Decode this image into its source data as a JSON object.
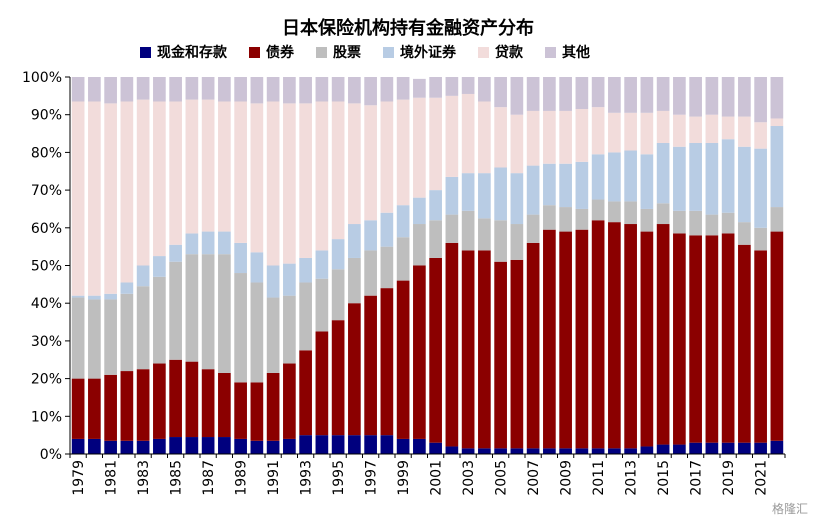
{
  "chart_data": {
    "type": "bar",
    "stacked": true,
    "title": "日本保险机构持有金融资产分布",
    "xlabel": "",
    "ylabel": "",
    "ylim": [
      0,
      100
    ],
    "y_ticks": [
      "0%",
      "10%",
      "20%",
      "30%",
      "40%",
      "50%",
      "60%",
      "70%",
      "80%",
      "90%",
      "100%"
    ],
    "legend_position": "top",
    "categories": [
      "1979",
      "1980",
      "1981",
      "1982",
      "1983",
      "1984",
      "1985",
      "1986",
      "1987",
      "1988",
      "1989",
      "1990",
      "1991",
      "1992",
      "1993",
      "1994",
      "1995",
      "1996",
      "1997",
      "1998",
      "1999",
      "2000",
      "2001",
      "2002",
      "2003",
      "2004",
      "2005",
      "2006",
      "2007",
      "2008",
      "2009",
      "2010",
      "2011",
      "2012",
      "2013",
      "2014",
      "2015",
      "2016",
      "2017",
      "2018",
      "2019",
      "2020",
      "2021",
      "2022"
    ],
    "x_tick_labels": [
      "1979",
      "1981",
      "1983",
      "1985",
      "1987",
      "1989",
      "1991",
      "1993",
      "1995",
      "1997",
      "1999",
      "2001",
      "2003",
      "2005",
      "2007",
      "2009",
      "2011",
      "2013",
      "2015",
      "2017",
      "2019",
      "2021"
    ],
    "series": [
      {
        "name": "现金和存款",
        "color": "#00007e",
        "values": [
          4,
          4,
          3.5,
          3.5,
          3.5,
          4,
          4.5,
          4.5,
          4.5,
          4.5,
          4,
          3.5,
          3.5,
          4,
          5,
          5,
          5,
          5,
          5,
          5,
          4,
          4,
          3,
          2,
          1.5,
          1.5,
          1.5,
          1.5,
          1.5,
          1.5,
          1.5,
          1.5,
          1.5,
          1.5,
          1.5,
          2,
          2.5,
          2.5,
          3,
          3,
          3,
          3,
          3,
          3.5
        ]
      },
      {
        "name": "债券",
        "color": "#8b0000",
        "values": [
          16,
          16,
          17.5,
          18.5,
          19,
          20,
          20.5,
          20,
          18,
          17,
          15,
          15.5,
          18,
          20,
          22.5,
          27.5,
          30.5,
          35,
          37,
          39,
          42,
          46,
          49,
          54,
          52.5,
          52.5,
          49.5,
          50,
          54.5,
          58,
          57.5,
          58,
          60.5,
          60,
          59.5,
          57,
          58.5,
          56,
          55,
          55,
          55.5,
          52.5,
          51,
          55.5
        ]
      },
      {
        "name": "股票",
        "color": "#bebebe",
        "values": [
          21.5,
          21,
          20,
          20.5,
          22,
          23,
          26,
          28.5,
          30.5,
          31.5,
          29,
          26.5,
          20,
          18,
          18,
          14,
          13.5,
          12,
          12,
          11,
          11.5,
          11,
          10,
          7.5,
          10.5,
          8.5,
          11,
          9.5,
          7.5,
          6.5,
          6.5,
          5.5,
          5.5,
          5.5,
          6,
          6,
          5.5,
          6,
          6.5,
          5.5,
          5.5,
          6,
          6,
          6.5
        ]
      },
      {
        "name": "境外证券",
        "color": "#b8cce4",
        "values": [
          0.5,
          1,
          1.5,
          3,
          5.5,
          5.5,
          4.5,
          5.5,
          6,
          6,
          8,
          8,
          8.5,
          8.5,
          6.5,
          7.5,
          8,
          9,
          8,
          9,
          8.5,
          7,
          8,
          10,
          10,
          12,
          14,
          13.5,
          13,
          11,
          11.5,
          12.5,
          12,
          13,
          13.5,
          14.5,
          16,
          17,
          18,
          19,
          19.5,
          20,
          21,
          21.5
        ]
      },
      {
        "name": "贷款",
        "color": "#f2dcdb",
        "values": [
          51.5,
          51.5,
          50.5,
          48,
          44,
          41,
          38,
          35.5,
          35,
          34.5,
          37.5,
          39.5,
          43.5,
          42.5,
          41,
          39.5,
          36.5,
          32,
          30.5,
          29.5,
          28,
          26.5,
          24.5,
          21.5,
          21,
          19,
          16,
          15.5,
          14.5,
          14,
          14,
          14,
          12.5,
          10.5,
          10,
          11,
          8.5,
          8.5,
          7,
          7.5,
          6,
          8,
          7,
          2
        ]
      },
      {
        "name": "其他",
        "color": "#ccc3d6",
        "values": [
          6.5,
          6.5,
          7,
          6.5,
          6,
          6.5,
          6.5,
          6,
          6,
          6.5,
          6.5,
          7,
          6.5,
          7,
          7,
          6.5,
          6.5,
          7,
          7.5,
          6.5,
          6,
          5,
          5.5,
          5,
          4.5,
          6.5,
          8,
          10,
          9,
          9,
          9,
          8.5,
          8,
          9.5,
          9.5,
          9.5,
          9,
          10,
          10.5,
          10,
          10.5,
          10.5,
          12,
          11
        ]
      }
    ]
  },
  "watermark": "格隆汇"
}
